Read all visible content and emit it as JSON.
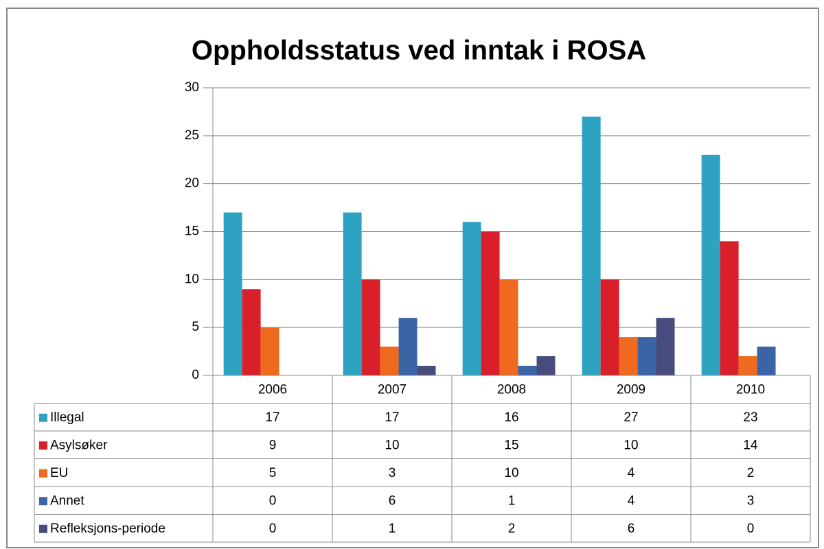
{
  "chart_data": {
    "type": "bar",
    "title": "Oppholdsstatus ved inntak i ROSA",
    "categories": [
      "2006",
      "2007",
      "2008",
      "2009",
      "2010"
    ],
    "series": [
      {
        "name": "Illegal",
        "color": "#2ea3c1",
        "values": [
          17,
          17,
          16,
          27,
          23
        ]
      },
      {
        "name": "Asylsøker",
        "color": "#d9202a",
        "values": [
          9,
          10,
          15,
          10,
          14
        ]
      },
      {
        "name": "EU",
        "color": "#ef6a1e",
        "values": [
          5,
          3,
          10,
          4,
          2
        ]
      },
      {
        "name": "Annet",
        "color": "#3a64a6",
        "values": [
          0,
          6,
          1,
          4,
          3
        ]
      },
      {
        "name": "Refleksjons-periode",
        "color": "#474b7e",
        "values": [
          0,
          1,
          2,
          6,
          0
        ]
      }
    ],
    "ylim": [
      0,
      30
    ],
    "yticks": [
      0,
      5,
      10,
      15,
      20,
      25,
      30
    ],
    "grid": true,
    "data_table": true
  }
}
